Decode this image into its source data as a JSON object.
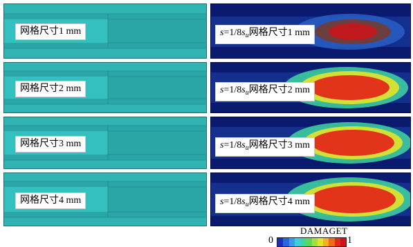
{
  "rows": [
    {
      "mesh_label": "网格尺寸1 mm",
      "damage_s": "s",
      "damage_eq": "=1/8",
      "damage_su": "s",
      "damage_sub": "u",
      "damage_text": "网格尺寸1 mm"
    },
    {
      "mesh_label": "网格尺寸2 mm",
      "damage_s": "s",
      "damage_eq": "=1/8",
      "damage_su": "s",
      "damage_sub": "u",
      "damage_text": "网格尺寸2 mm"
    },
    {
      "mesh_label": "网格尺寸3 mm",
      "damage_s": "s",
      "damage_eq": "=1/8",
      "damage_su": "s",
      "damage_sub": "u",
      "damage_text": "网格尺寸3 mm"
    },
    {
      "mesh_label": "网格尺寸4 mm",
      "damage_s": "s",
      "damage_eq": "=1/8",
      "damage_su": "s",
      "damage_sub": "u",
      "damage_text": "网格尺寸4 mm"
    }
  ],
  "legend": {
    "title": "DAMAGET",
    "min": "0",
    "max": "1",
    "colors": [
      "#1f2dbd",
      "#2f64e0",
      "#3d9ae8",
      "#3fcde0",
      "#3fd6a0",
      "#5cd65c",
      "#a7de3a",
      "#e3e32a",
      "#f2b21f",
      "#ee6b1b",
      "#e22a1a",
      "#c8141a"
    ]
  },
  "colors": {
    "mesh_fill": "#2fb3b3",
    "damage_bg": "#0a1a6e"
  }
}
